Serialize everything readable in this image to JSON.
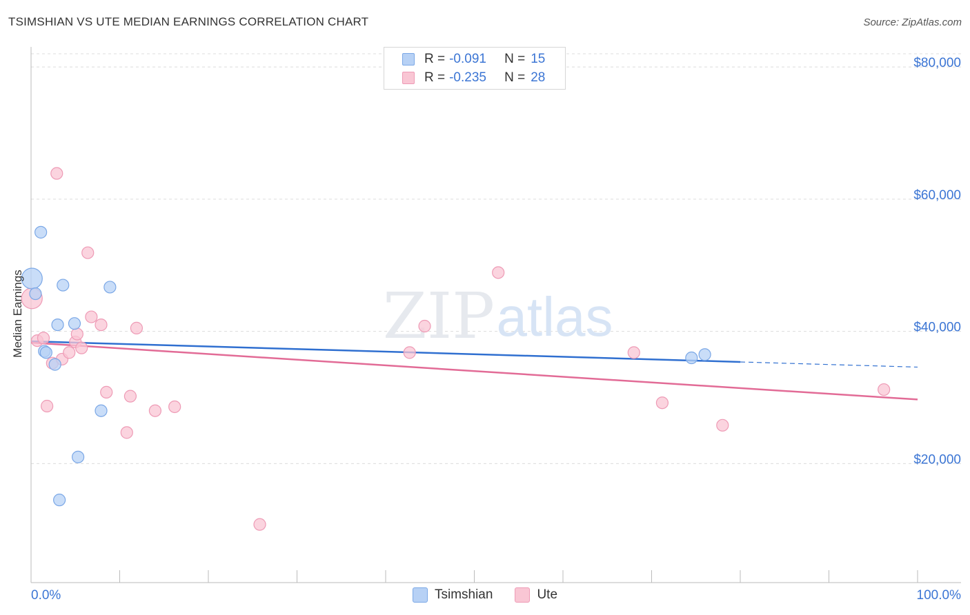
{
  "title": "TSIMSHIAN VS UTE MEDIAN EARNINGS CORRELATION CHART",
  "source": "Source: ZipAtlas.com",
  "watermark": {
    "zip": "ZIP",
    "atlas": "atlas"
  },
  "legend": {
    "rows": [
      {
        "r_label": "R =",
        "r_value": "-0.091",
        "n_label": "N =",
        "n_value": "15"
      },
      {
        "r_label": "R =",
        "r_value": "-0.235",
        "n_label": "N =",
        "n_value": "28"
      }
    ]
  },
  "bottom_legend": {
    "series1": "Tsimshian",
    "series2": "Ute"
  },
  "colors": {
    "tsimshian_fill": "#b7d1f5",
    "tsimshian_stroke": "#7aa7e6",
    "tsimshian_line": "#2f6fd0",
    "ute_fill": "#f9c6d4",
    "ute_stroke": "#ee9ab5",
    "ute_line": "#e26b96",
    "axis_label": "#3b75d4"
  },
  "chart_data": {
    "type": "scatter",
    "title": "TSIMSHIAN VS UTE MEDIAN EARNINGS CORRELATION CHART",
    "xlabel": "",
    "ylabel": "Median Earnings",
    "xlim": [
      0,
      100
    ],
    "ylim": [
      2000,
      82000
    ],
    "x_tick_labels": [
      "0.0%",
      "100.0%"
    ],
    "y_ticks": [
      20000,
      40000,
      60000,
      80000
    ],
    "y_tick_labels": [
      "$20,000",
      "$40,000",
      "$60,000",
      "$80,000"
    ],
    "grid": true,
    "series": [
      {
        "name": "Tsimshian",
        "points": [
          [
            0.1,
            48000
          ],
          [
            0.5,
            45700
          ],
          [
            1.1,
            55000
          ],
          [
            1.5,
            37000
          ],
          [
            1.7,
            36800
          ],
          [
            2.7,
            35000
          ],
          [
            3.0,
            41000
          ],
          [
            3.2,
            14500
          ],
          [
            3.6,
            47000
          ],
          [
            4.9,
            41200
          ],
          [
            5.3,
            21000
          ],
          [
            7.9,
            28000
          ],
          [
            8.9,
            46700
          ],
          [
            74.5,
            36000
          ],
          [
            76.0,
            36500
          ]
        ],
        "trend": {
          "x": [
            0,
            100
          ],
          "y": [
            38500,
            34600
          ],
          "solid_until_x": 80
        }
      },
      {
        "name": "Ute",
        "points": [
          [
            0.1,
            45000
          ],
          [
            0.7,
            38600
          ],
          [
            1.4,
            39000
          ],
          [
            1.8,
            28700
          ],
          [
            2.4,
            35200
          ],
          [
            2.9,
            63900
          ],
          [
            3.5,
            35800
          ],
          [
            4.3,
            36800
          ],
          [
            5.0,
            38400
          ],
          [
            5.2,
            39600
          ],
          [
            5.7,
            37500
          ],
          [
            6.4,
            51900
          ],
          [
            6.8,
            42200
          ],
          [
            7.9,
            41000
          ],
          [
            8.5,
            30800
          ],
          [
            10.8,
            24700
          ],
          [
            11.2,
            30200
          ],
          [
            11.9,
            40500
          ],
          [
            14.0,
            28000
          ],
          [
            16.2,
            28600
          ],
          [
            25.8,
            10800
          ],
          [
            42.7,
            36800
          ],
          [
            44.4,
            40800
          ],
          [
            52.7,
            48900
          ],
          [
            68.0,
            36800
          ],
          [
            71.2,
            29200
          ],
          [
            78.0,
            25800
          ],
          [
            96.2,
            31200
          ]
        ],
        "trend": {
          "x": [
            0,
            100
          ],
          "y": [
            38300,
            29700
          ]
        }
      }
    ]
  }
}
